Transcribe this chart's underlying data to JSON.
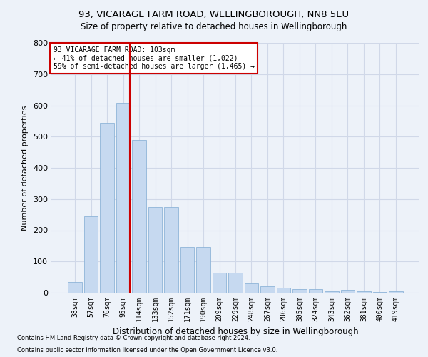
{
  "title1": "93, VICARAGE FARM ROAD, WELLINGBOROUGH, NN8 5EU",
  "title2": "Size of property relative to detached houses in Wellingborough",
  "xlabel": "Distribution of detached houses by size in Wellingborough",
  "ylabel": "Number of detached properties",
  "footnote1": "Contains HM Land Registry data © Crown copyright and database right 2024.",
  "footnote2": "Contains public sector information licensed under the Open Government Licence v3.0.",
  "bar_labels": [
    "38sqm",
    "57sqm",
    "76sqm",
    "95sqm",
    "114sqm",
    "133sqm",
    "152sqm",
    "171sqm",
    "190sqm",
    "209sqm",
    "229sqm",
    "248sqm",
    "267sqm",
    "286sqm",
    "305sqm",
    "324sqm",
    "343sqm",
    "362sqm",
    "381sqm",
    "400sqm",
    "419sqm"
  ],
  "bar_values": [
    35,
    245,
    545,
    607,
    490,
    275,
    275,
    147,
    147,
    65,
    65,
    30,
    20,
    17,
    12,
    12,
    5,
    10,
    5,
    2,
    5
  ],
  "bar_color": "#c6d9f0",
  "bar_edgecolor": "#8eb4d8",
  "vline_color": "#cc0000",
  "vline_x_index": 3,
  "annotation_text": "93 VICARAGE FARM ROAD: 103sqm\n← 41% of detached houses are smaller (1,022)\n59% of semi-detached houses are larger (1,465) →",
  "annotation_box_color": "#ffffff",
  "annotation_box_edgecolor": "#cc0000",
  "grid_color": "#d0d8e8",
  "bg_color": "#edf2f9",
  "ylim": [
    0,
    800
  ],
  "yticks": [
    0,
    100,
    200,
    300,
    400,
    500,
    600,
    700,
    800
  ]
}
